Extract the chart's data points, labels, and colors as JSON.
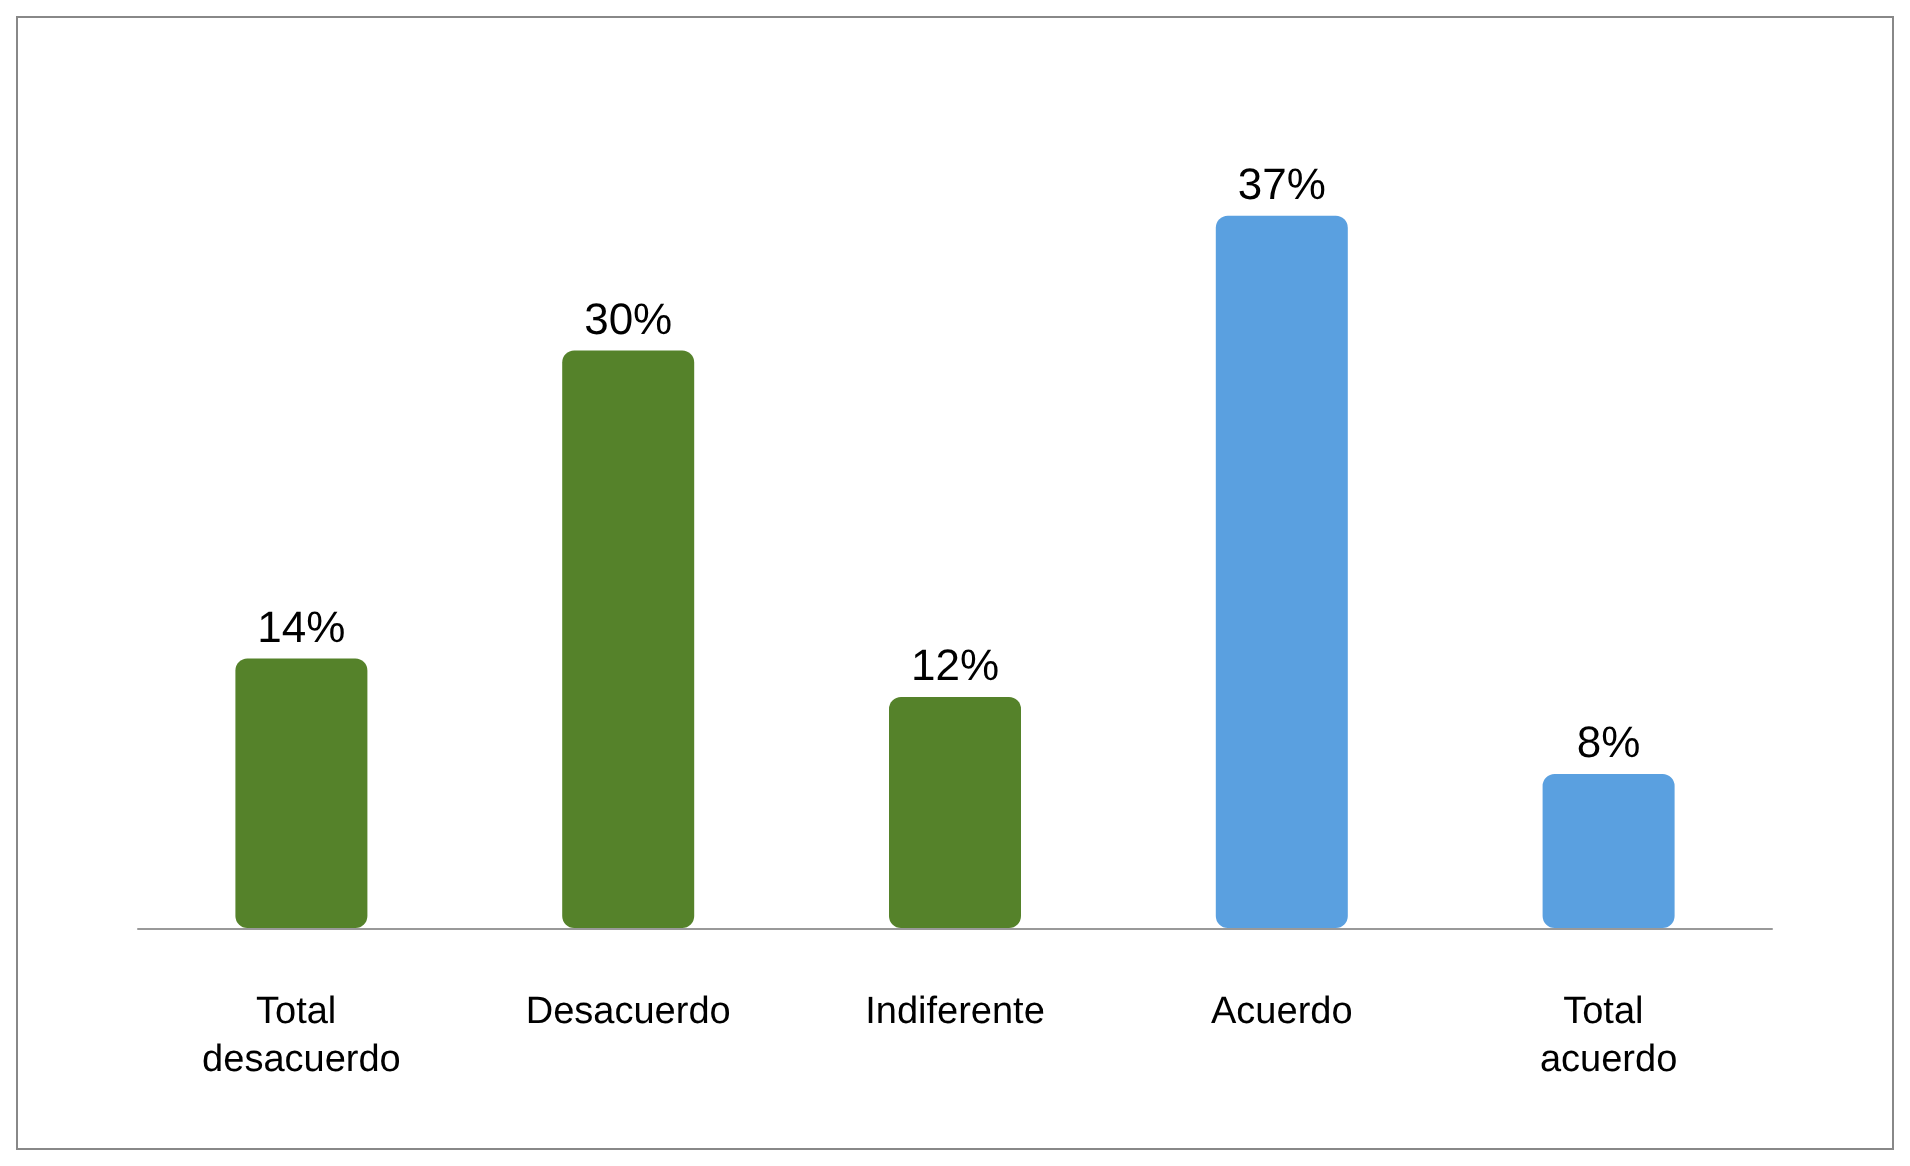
{
  "chart_data": {
    "type": "bar",
    "categories": [
      "Total desacuerdo",
      "Desacuerdo",
      "Indiferente",
      "Acuerdo",
      "Total acuerdo"
    ],
    "values": [
      14,
      30,
      12,
      37,
      8
    ],
    "value_labels": [
      "14%",
      "30%",
      "12%",
      "37%",
      "8%"
    ],
    "colors": [
      "#55822a",
      "#55822a",
      "#55822a",
      "#5aa0e0",
      "#5aa0e0"
    ]
  }
}
